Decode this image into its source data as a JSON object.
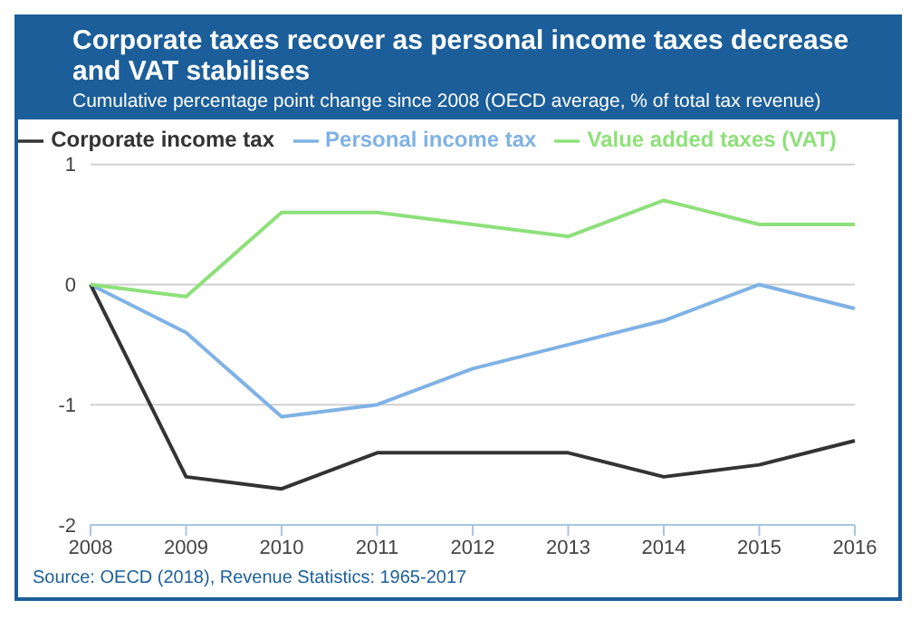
{
  "chart_data": {
    "type": "line",
    "title": "Corporate taxes recover as personal income taxes decrease and VAT stabilises",
    "subtitle": "Cumulative percentage point change since 2008 (OECD average, % of total tax revenue)",
    "categories": [
      "2008",
      "2009",
      "2010",
      "2011",
      "2012",
      "2013",
      "2014",
      "2015",
      "2016"
    ],
    "series": [
      {
        "name": "Personal income tax",
        "color": "#7fb2e5",
        "values": [
          0,
          -0.4,
          -1.1,
          -1,
          -0.7,
          -0.5,
          -0.3,
          0,
          -0.2
        ]
      },
      {
        "name": "Corporate income tax",
        "color": "#333333",
        "values": [
          0,
          -1.6,
          -1.7,
          -1.4,
          -1.4,
          -1.4,
          -1.6,
          -1.5,
          -1.3
        ]
      },
      {
        "name": "Value added taxes (VAT)",
        "color": "#8ee07a",
        "values": [
          0,
          -0.1,
          0.6,
          0.6,
          0.5,
          0.4,
          0.7,
          0.5,
          0.5
        ]
      }
    ],
    "ylim": [
      -2,
      1
    ],
    "yticks": [
      -2,
      -1,
      0,
      1
    ],
    "grid": "y",
    "legend": "top",
    "marker": "none",
    "line_style": "solid",
    "annotations": [
      "Source: OECD (2018), Revenue Statistics: 1965-2017"
    ]
  }
}
